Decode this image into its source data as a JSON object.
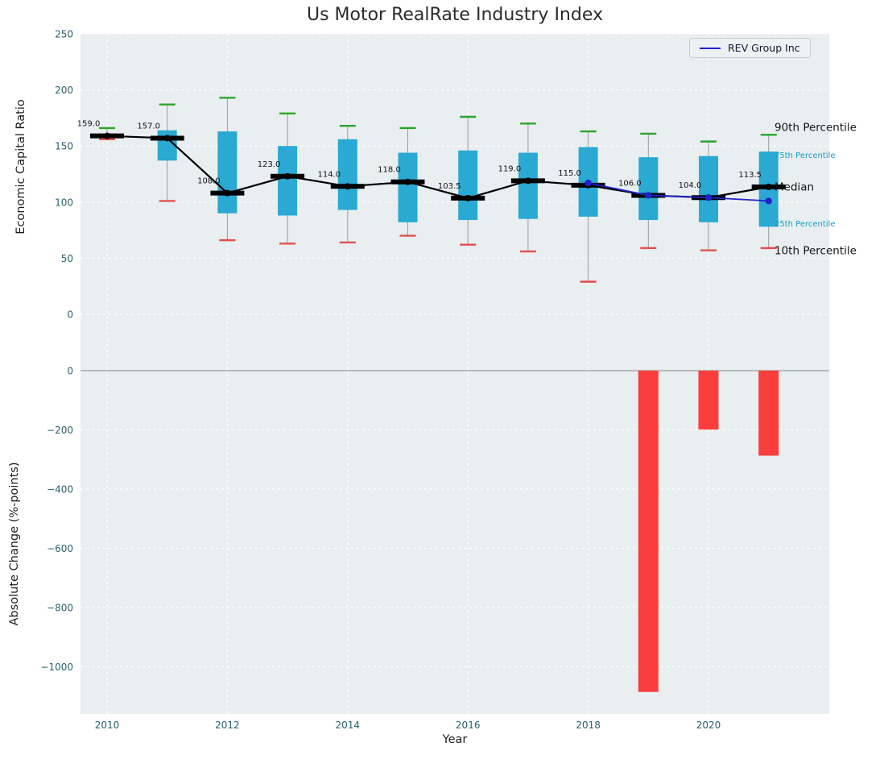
{
  "colors": {
    "panel_bg": "#e9eef0",
    "grid": "#ffffff",
    "box_fill": "#2aa9d2",
    "cap_high": "#2aa52a",
    "cap_low": "#e05050",
    "whisker_line": "#9a9a9a",
    "median_color": "#000000",
    "rev_line": "#2222cc",
    "bar_fill": "#fb3d3d",
    "tick_label": "#2b5f6d",
    "text_dark": "#141414",
    "percentile_cyan": "#1a9bc7"
  },
  "chart_data": [
    {
      "type": "boxplot+line",
      "title": "Us Motor RealRate Industry Index",
      "ylabel": "Economic Capital Ratio",
      "ylim": [
        -48,
        250
      ],
      "yticks": [
        0,
        50,
        100,
        150,
        200,
        250
      ],
      "xticks": [
        2010,
        2012,
        2014,
        2016,
        2018,
        2020
      ],
      "grid": true,
      "legend": {
        "label": "REV Group Inc",
        "position": "upper right"
      },
      "boxes": [
        {
          "year": 2010,
          "low": 156,
          "q1": 157,
          "median": 159.0,
          "q3": 161,
          "high": 166
        },
        {
          "year": 2011,
          "low": 101,
          "q1": 137,
          "median": 157.0,
          "q3": 164,
          "high": 187
        },
        {
          "year": 2012,
          "low": 66,
          "q1": 90,
          "median": 108.0,
          "q3": 163,
          "high": 193
        },
        {
          "year": 2013,
          "low": 63,
          "q1": 88,
          "median": 123.0,
          "q3": 150,
          "high": 179
        },
        {
          "year": 2014,
          "low": 64,
          "q1": 93,
          "median": 114.0,
          "q3": 156,
          "high": 168
        },
        {
          "year": 2015,
          "low": 70,
          "q1": 82,
          "median": 118.0,
          "q3": 144,
          "high": 166
        },
        {
          "year": 2016,
          "low": 62,
          "q1": 84,
          "median": 103.5,
          "q3": 146,
          "high": 176
        },
        {
          "year": 2017,
          "low": 56,
          "q1": 85,
          "median": 119.0,
          "q3": 144,
          "high": 170
        },
        {
          "year": 2018,
          "low": 29,
          "q1": 87,
          "median": 115.0,
          "q3": 149,
          "high": 163
        },
        {
          "year": 2019,
          "low": 59,
          "q1": 84,
          "median": 106.0,
          "q3": 140,
          "high": 161
        },
        {
          "year": 2020,
          "low": 57,
          "q1": 82,
          "median": 104.0,
          "q3": 141,
          "high": 154
        },
        {
          "year": 2021,
          "low": 59,
          "q1": 78,
          "median": 113.5,
          "q3": 145,
          "high": 160
        }
      ],
      "rev_series": {
        "name": "REV Group Inc",
        "x": [
          2018,
          2019,
          2020,
          2021
        ],
        "y": [
          117,
          106,
          104,
          101
        ]
      },
      "annotations": [
        {
          "label": "90th Percentile",
          "value": 167,
          "style": "large"
        },
        {
          "label": "75th Percentile",
          "value": 143,
          "style": "small"
        },
        {
          "label": "Median",
          "value": 114,
          "style": "large"
        },
        {
          "label": "25th Percentile",
          "value": 82,
          "style": "small"
        },
        {
          "label": "10th Percentile",
          "value": 57,
          "style": "large"
        }
      ]
    },
    {
      "type": "bar",
      "ylabel": "Absolute Change (%-points)",
      "xlabel": "Year",
      "ylim": [
        -1160,
        11
      ],
      "yticks": [
        0,
        -200,
        -400,
        -600,
        -800,
        -1000
      ],
      "xticks": [
        2010,
        2012,
        2014,
        2016,
        2018,
        2020
      ],
      "bars": [
        {
          "year": 2019,
          "value": -1085
        },
        {
          "year": 2020,
          "value": -199
        },
        {
          "year": 2021,
          "value": -287
        }
      ]
    }
  ]
}
